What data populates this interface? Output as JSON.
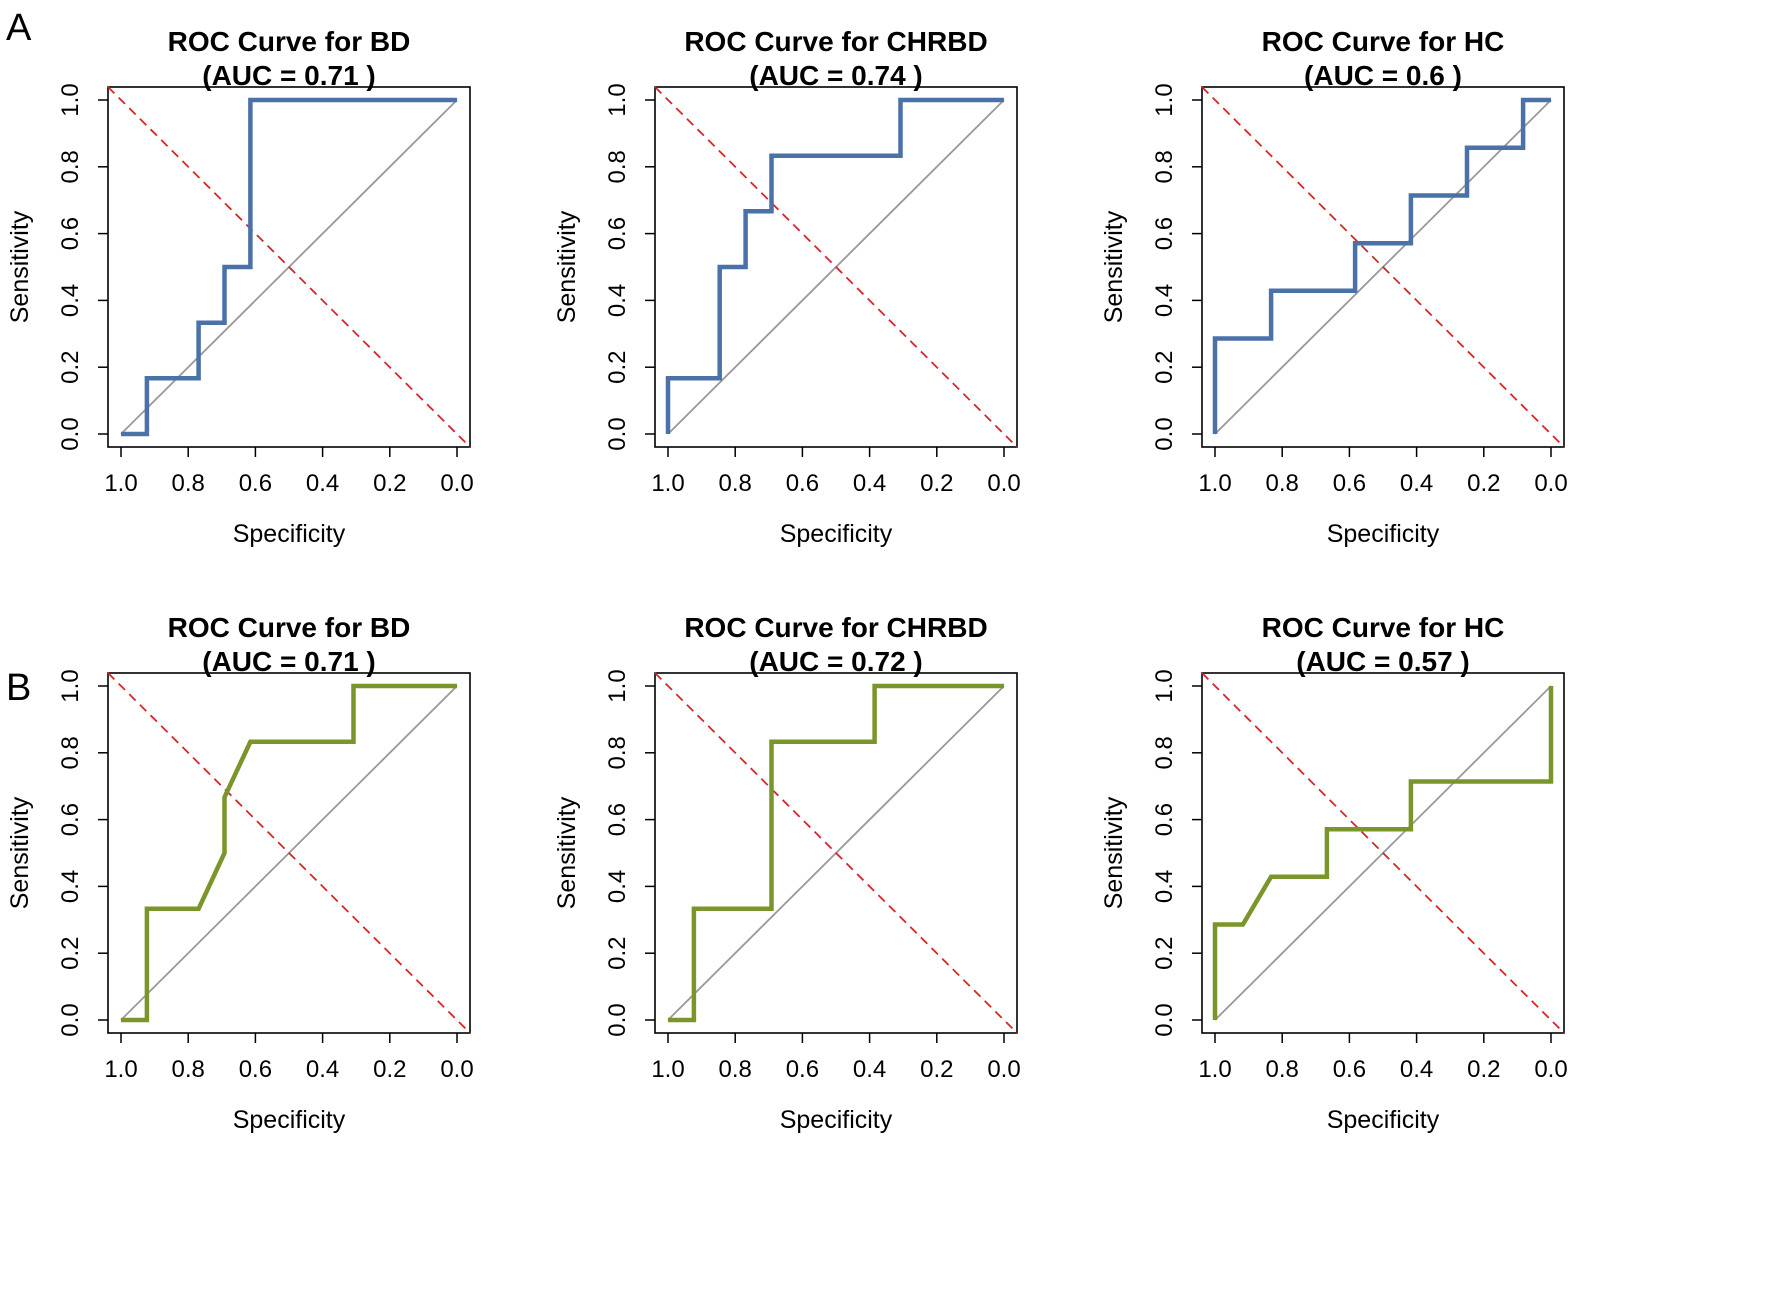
{
  "figure": {
    "rows": [
      {
        "label": "A",
        "curve_color": "#4A72A8",
        "charts": [
          {
            "title": "ROC Curve for BD",
            "auc_text": "(AUC = 0.71 )"
          },
          {
            "title": "ROC Curve for CHRBD",
            "auc_text": "(AUC = 0.74 )"
          },
          {
            "title": "ROC Curve for HC",
            "auc_text": "(AUC = 0.6 )"
          }
        ]
      },
      {
        "label": "B",
        "curve_color": "#7A962B",
        "charts": [
          {
            "title": "ROC Curve for BD",
            "auc_text": "(AUC = 0.71 )"
          },
          {
            "title": "ROC Curve for CHRBD",
            "auc_text": "(AUC = 0.72 )"
          },
          {
            "title": "ROC Curve for HC",
            "auc_text": "(AUC = 0.57 )"
          }
        ]
      }
    ],
    "colors": {
      "reference_diagonal": "#999999",
      "threshold_line": "#D62728",
      "axis": "#000000"
    }
  },
  "chart_data": [
    {
      "panel": "A",
      "type": "line",
      "title": "ROC Curve for BD",
      "subtitle": "(AUC = 0.71 )",
      "xlabel": "Specificity",
      "ylabel": "Sensitivity",
      "xlim": [
        1.0,
        0.0
      ],
      "ylim": [
        0.0,
        1.0
      ],
      "xticks": [
        "1.0",
        "0.8",
        "0.6",
        "0.4",
        "0.2",
        "0.0"
      ],
      "yticks": [
        "0.0",
        "0.2",
        "0.4",
        "0.6",
        "0.8",
        "1.0"
      ],
      "series": [
        {
          "name": "ROC",
          "color": "#4A72A8",
          "x": [
            1.0,
            0.923,
            0.923,
            0.769,
            0.769,
            0.692,
            0.692,
            0.615,
            0.615,
            0.0
          ],
          "y": [
            0.0,
            0.0,
            0.167,
            0.167,
            0.333,
            0.333,
            0.5,
            0.5,
            1.0,
            1.0
          ]
        }
      ]
    },
    {
      "panel": "A",
      "type": "line",
      "title": "ROC Curve for CHRBD",
      "subtitle": "(AUC = 0.74 )",
      "xlabel": "Specificity",
      "ylabel": "Sensitivity",
      "xlim": [
        1.0,
        0.0
      ],
      "ylim": [
        0.0,
        1.0
      ],
      "xticks": [
        "1.0",
        "0.8",
        "0.6",
        "0.4",
        "0.2",
        "0.0"
      ],
      "yticks": [
        "0.0",
        "0.2",
        "0.4",
        "0.6",
        "0.8",
        "1.0"
      ],
      "series": [
        {
          "name": "ROC",
          "color": "#4A72A8",
          "x": [
            1.0,
            1.0,
            0.846,
            0.846,
            0.769,
            0.769,
            0.692,
            0.692,
            0.308,
            0.308,
            0.0
          ],
          "y": [
            0.0,
            0.167,
            0.167,
            0.5,
            0.5,
            0.667,
            0.667,
            0.833,
            0.833,
            1.0,
            1.0
          ]
        }
      ]
    },
    {
      "panel": "A",
      "type": "line",
      "title": "ROC Curve for HC",
      "subtitle": "(AUC = 0.6 )",
      "xlabel": "Specificity",
      "ylabel": "Sensitivity",
      "xlim": [
        1.0,
        0.0
      ],
      "ylim": [
        0.0,
        1.0
      ],
      "xticks": [
        "1.0",
        "0.8",
        "0.6",
        "0.4",
        "0.2",
        "0.0"
      ],
      "yticks": [
        "0.0",
        "0.2",
        "0.4",
        "0.6",
        "0.8",
        "1.0"
      ],
      "series": [
        {
          "name": "ROC",
          "color": "#4A72A8",
          "x": [
            1.0,
            1.0,
            0.833,
            0.833,
            0.583,
            0.583,
            0.417,
            0.417,
            0.25,
            0.25,
            0.083,
            0.083,
            0.0
          ],
          "y": [
            0.0,
            0.286,
            0.286,
            0.429,
            0.429,
            0.571,
            0.571,
            0.714,
            0.714,
            0.857,
            0.857,
            1.0,
            1.0
          ]
        }
      ]
    },
    {
      "panel": "B",
      "type": "line",
      "title": "ROC Curve for BD",
      "subtitle": "(AUC = 0.71 )",
      "xlabel": "Specificity",
      "ylabel": "Sensitivity",
      "xlim": [
        1.0,
        0.0
      ],
      "ylim": [
        0.0,
        1.0
      ],
      "xticks": [
        "1.0",
        "0.8",
        "0.6",
        "0.4",
        "0.2",
        "0.0"
      ],
      "yticks": [
        "0.0",
        "0.2",
        "0.4",
        "0.6",
        "0.8",
        "1.0"
      ],
      "series": [
        {
          "name": "ROC",
          "color": "#7A962B",
          "x": [
            1.0,
            0.923,
            0.923,
            0.769,
            0.692,
            0.692,
            0.615,
            0.308,
            0.308,
            0.0
          ],
          "y": [
            0.0,
            0.0,
            0.333,
            0.333,
            0.5,
            0.667,
            0.833,
            0.833,
            1.0,
            1.0
          ]
        }
      ]
    },
    {
      "panel": "B",
      "type": "line",
      "title": "ROC Curve for CHRBD",
      "subtitle": "(AUC = 0.72 )",
      "xlabel": "Specificity",
      "ylabel": "Sensitivity",
      "xlim": [
        1.0,
        0.0
      ],
      "ylim": [
        0.0,
        1.0
      ],
      "xticks": [
        "1.0",
        "0.8",
        "0.6",
        "0.4",
        "0.2",
        "0.0"
      ],
      "yticks": [
        "0.0",
        "0.2",
        "0.4",
        "0.6",
        "0.8",
        "1.0"
      ],
      "series": [
        {
          "name": "ROC",
          "color": "#7A962B",
          "x": [
            1.0,
            0.923,
            0.923,
            0.692,
            0.692,
            0.385,
            0.385,
            0.0
          ],
          "y": [
            0.0,
            0.0,
            0.333,
            0.333,
            0.833,
            0.833,
            1.0,
            1.0
          ]
        }
      ]
    },
    {
      "panel": "B",
      "type": "line",
      "title": "ROC Curve for HC",
      "subtitle": "(AUC = 0.57 )",
      "xlabel": "Specificity",
      "ylabel": "Sensitivity",
      "xlim": [
        1.0,
        0.0
      ],
      "ylim": [
        0.0,
        1.0
      ],
      "xticks": [
        "1.0",
        "0.8",
        "0.6",
        "0.4",
        "0.2",
        "0.0"
      ],
      "yticks": [
        "0.0",
        "0.2",
        "0.4",
        "0.6",
        "0.8",
        "1.0"
      ],
      "series": [
        {
          "name": "ROC",
          "color": "#7A962B",
          "x": [
            1.0,
            1.0,
            0.917,
            0.833,
            0.667,
            0.667,
            0.417,
            0.417,
            0.0,
            0.0
          ],
          "y": [
            0.0,
            0.286,
            0.286,
            0.429,
            0.429,
            0.571,
            0.571,
            0.714,
            0.714,
            1.0
          ]
        }
      ]
    }
  ]
}
